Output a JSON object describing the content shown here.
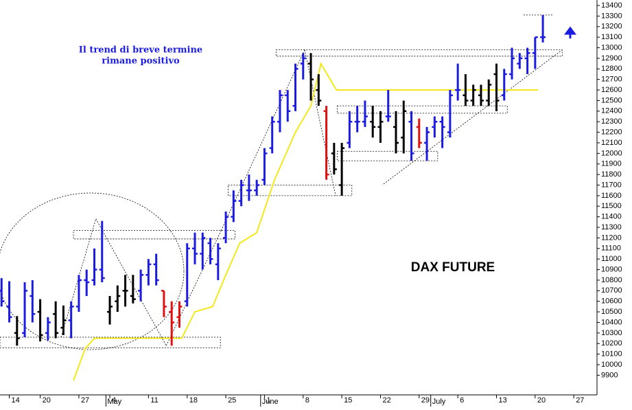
{
  "chart_data": {
    "type": "ohlc",
    "title": "DAX FUTURE",
    "annotations": [
      "Il trend di breve termine",
      "rimane positivo"
    ],
    "x": [
      -1,
      0,
      1,
      2,
      3,
      4,
      5,
      6,
      7,
      8,
      9,
      10,
      11,
      12,
      13,
      14,
      15,
      16,
      17,
      18,
      19,
      20,
      21,
      22,
      23,
      24,
      25,
      26,
      27,
      28,
      29,
      30,
      31,
      32,
      33,
      34,
      35,
      36,
      37,
      38,
      39,
      40,
      41,
      42,
      43,
      44,
      45,
      46,
      47,
      48,
      49,
      50,
      51,
      52,
      53,
      54,
      55,
      56,
      57,
      58,
      59,
      60,
      61,
      62,
      63,
      64,
      65,
      66,
      67,
      68,
      69
    ],
    "open": [
      10700,
      10550,
      10300,
      10300,
      10650,
      10500,
      10300,
      10480,
      10350,
      10420,
      10550,
      10800,
      10800,
      10900,
      10500,
      10600,
      10700,
      10650,
      10700,
      10850,
      10950,
      10700,
      10500,
      10450,
      10600,
      11100,
      11050,
      11150,
      10950,
      11200,
      11400,
      11550,
      11650,
      11650,
      11750,
      12050,
      12300,
      12550,
      12450,
      12850,
      12850,
      12600,
      12400,
      12000,
      11700,
      12100,
      12300,
      12300,
      12300,
      12250,
      12350,
      12250,
      12150,
      12300,
      12250,
      12100,
      12250,
      12300,
      12200,
      12600,
      12550,
      12500,
      12550,
      12500,
      12750,
      12550,
      12750,
      12850,
      12900,
      12950,
      13100
    ],
    "high": [
      10820,
      10790,
      10460,
      10780,
      10800,
      10620,
      10450,
      10600,
      10560,
      10600,
      10850,
      10900,
      11100,
      11360,
      10650,
      10750,
      10850,
      10850,
      10900,
      11000,
      11050,
      10700,
      10600,
      10600,
      11150,
      11250,
      11250,
      11200,
      11150,
      11450,
      11650,
      11750,
      11800,
      11750,
      12050,
      12350,
      12600,
      12600,
      12850,
      12950,
      12950,
      12750,
      12450,
      12100,
      12100,
      12400,
      12450,
      12500,
      12450,
      12400,
      12600,
      12400,
      12500,
      12400,
      12330,
      12250,
      12350,
      12350,
      12600,
      12850,
      12750,
      12650,
      12650,
      12700,
      12850,
      12800,
      13000,
      12950,
      13000,
      13100,
      13310
    ],
    "low": [
      10550,
      10400,
      10180,
      10260,
      10400,
      10220,
      10230,
      10250,
      10280,
      10250,
      10500,
      10650,
      10750,
      10780,
      10380,
      10500,
      10550,
      10580,
      10600,
      10750,
      10750,
      10450,
      10180,
      10350,
      10550,
      10950,
      10900,
      10950,
      10800,
      11150,
      11350,
      11500,
      11550,
      11600,
      11700,
      12000,
      12200,
      12300,
      12400,
      12700,
      12500,
      12450,
      11750,
      11800,
      11600,
      12050,
      12200,
      12250,
      12150,
      12100,
      12300,
      12000,
      12000,
      11930,
      12050,
      11930,
      12150,
      12050,
      12150,
      12500,
      12450,
      12450,
      12450,
      12450,
      12400,
      12500,
      12700,
      12800,
      12750,
      12800,
      13050
    ],
    "close": [
      10600,
      10450,
      10250,
      10700,
      10480,
      10280,
      10400,
      10300,
      10420,
      10550,
      10800,
      10780,
      10900,
      10820,
      10550,
      10650,
      10700,
      10620,
      10850,
      10950,
      10800,
      10550,
      10400,
      10550,
      11100,
      11050,
      11200,
      11000,
      11100,
      11400,
      11550,
      11700,
      11650,
      11700,
      12000,
      12300,
      12550,
      12400,
      12800,
      12900,
      12700,
      12500,
      11800,
      11850,
      12050,
      12300,
      12300,
      12350,
      12250,
      12300,
      12350,
      12100,
      12400,
      12000,
      12100,
      12200,
      12300,
      12250,
      12550,
      12600,
      12500,
      12600,
      12500,
      12650,
      12500,
      12750,
      12900,
      12900,
      12950,
      13100,
      13100
    ],
    "bar_colors": [
      "#1c1ce0",
      "#1c1ce0",
      "#000000",
      "#1c1ce0",
      "#1c1ce0",
      "#000000",
      "#1c1ce0",
      "#000000",
      "#000000",
      "#1c1ce0",
      "#1c1ce0",
      "#1c1ce0",
      "#1c1ce0",
      "#1c1ce0",
      "#000000",
      "#000000",
      "#000000",
      "#000000",
      "#1c1ce0",
      "#1c1ce0",
      "#1c1ce0",
      "#e01010",
      "#e01010",
      "#e01010",
      "#1c1ce0",
      "#1c1ce0",
      "#1c1ce0",
      "#1c1ce0",
      "#1c1ce0",
      "#1c1ce0",
      "#1c1ce0",
      "#1c1ce0",
      "#1c1ce0",
      "#1c1ce0",
      "#1c1ce0",
      "#1c1ce0",
      "#1c1ce0",
      "#1c1ce0",
      "#1c1ce0",
      "#1c1ce0",
      "#000000",
      "#000000",
      "#e01010",
      "#000000",
      "#000000",
      "#1c1ce0",
      "#1c1ce0",
      "#1c1ce0",
      "#000000",
      "#000000",
      "#1c1ce0",
      "#000000",
      "#000000",
      "#1c1ce0",
      "#e01010",
      "#1c1ce0",
      "#1c1ce0",
      "#1c1ce0",
      "#1c1ce0",
      "#1c1ce0",
      "#000000",
      "#000000",
      "#000000",
      "#000000",
      "#000000",
      "#1c1ce0",
      "#1c1ce0",
      "#1c1ce0",
      "#1c1ce0",
      "#1c1ce0",
      "#1c1ce0"
    ],
    "indicator": {
      "color": "#f4e81a",
      "x": [
        8.3,
        9.8,
        11,
        22.3,
        24,
        26.3,
        28,
        29.8,
        32,
        34.3,
        37,
        39,
        40.3,
        42.3,
        68.4
      ],
      "values": [
        9850,
        10150,
        10250,
        10250,
        10500,
        10550,
        10850,
        11150,
        11250,
        11750,
        12200,
        12450,
        12850,
        12600,
        12600
      ]
    },
    "zones": [
      {
        "x": [
          -1.2,
          27.3
        ],
        "y": [
          10160,
          10260
        ]
      },
      {
        "x": [
          8.3,
          29.2
        ],
        "y": [
          11190,
          11270
        ]
      },
      {
        "x": [
          28.3,
          44.3
        ],
        "y": [
          11600,
          11700
        ]
      },
      {
        "x": [
          34.5,
          71.5
        ],
        "y": [
          12920,
          12980
        ]
      },
      {
        "x": [
          42.4,
          64.4
        ],
        "y": [
          12380,
          12450
        ]
      },
      {
        "x": [
          42.4,
          55.4
        ],
        "y": [
          11930,
          12020
        ]
      }
    ],
    "levels": [
      {
        "x": [
          66.5,
          70.4
        ],
        "value": 13310
      }
    ],
    "trendlines": [
      {
        "x": [
          48.4,
          71.5
        ],
        "y": [
          11710,
          12980
        ]
      },
      {
        "x": [
          6.7,
          11.2
        ],
        "y": [
          10260,
          11380
        ]
      },
      {
        "x": [
          11.2,
          20.3
        ],
        "y": [
          11380,
          10180
        ]
      },
      {
        "x": [
          20.3,
          27.4
        ],
        "y": [
          10180,
          11270
        ]
      },
      {
        "x": [
          27.4,
          38.2
        ],
        "y": [
          11270,
          12980
        ]
      },
      {
        "x": [
          38.2,
          42.2
        ],
        "y": [
          12980,
          11600
        ]
      }
    ],
    "xlim": [
      -1.2,
      76
    ],
    "ylim": [
      9714,
      13452
    ],
    "xticks": [
      {
        "value": 0,
        "label": "14"
      },
      {
        "value": 4,
        "label": "20"
      },
      {
        "value": 9,
        "label": "27"
      },
      {
        "value": 13,
        "label": "4"
      },
      {
        "value": 18,
        "label": "11"
      },
      {
        "value": 23,
        "label": "18"
      },
      {
        "value": 28,
        "label": "25"
      },
      {
        "value": 33,
        "label": "1"
      },
      {
        "value": 38,
        "label": "8"
      },
      {
        "value": 43,
        "label": "15"
      },
      {
        "value": 48,
        "label": "22"
      },
      {
        "value": 53,
        "label": "29"
      },
      {
        "value": 58,
        "label": "6"
      },
      {
        "value": 63,
        "label": "13"
      },
      {
        "value": 68,
        "label": "20"
      },
      {
        "value": 73,
        "label": "27"
      }
    ],
    "month_ticks": [
      {
        "value": 12.5,
        "label": "May"
      },
      {
        "value": 32.5,
        "label": "June"
      },
      {
        "value": 54.5,
        "label": "July"
      }
    ],
    "yticks": [
      9900,
      10000,
      10100,
      10200,
      10300,
      10400,
      10500,
      10600,
      10700,
      10800,
      10900,
      11000,
      11100,
      11200,
      11300,
      11400,
      11500,
      11600,
      11700,
      11800,
      11900,
      12000,
      12100,
      12200,
      12300,
      12400,
      12500,
      12600,
      12700,
      12800,
      12900,
      13000,
      13100,
      13200,
      13300,
      13400
    ]
  }
}
